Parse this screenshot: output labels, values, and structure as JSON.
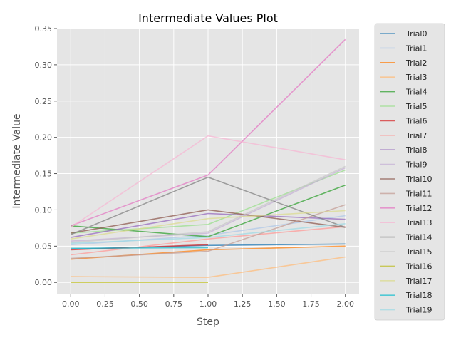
{
  "chart_data": {
    "type": "line",
    "title": "Intermediate Values Plot",
    "xlabel": "Step",
    "ylabel": "Intermediate Value",
    "xlim": [
      -0.1,
      2.1
    ],
    "ylim": [
      -0.0155,
      0.35
    ],
    "xticks": [
      0.0,
      0.25,
      0.5,
      0.75,
      1.0,
      1.25,
      1.5,
      1.75,
      2.0
    ],
    "xtick_labels": [
      "0.00",
      "0.25",
      "0.50",
      "0.75",
      "1.00",
      "1.25",
      "1.50",
      "1.75",
      "2.00"
    ],
    "yticks": [
      0.0,
      0.05,
      0.1,
      0.15,
      0.2,
      0.25,
      0.3,
      0.35
    ],
    "ytick_labels": [
      "0.00",
      "0.05",
      "0.10",
      "0.15",
      "0.20",
      "0.25",
      "0.30",
      "0.35"
    ],
    "grid": true,
    "legend_position": "outside-right",
    "background_color": "#e5e5e5",
    "series": [
      {
        "name": "Trial0",
        "color": "#1f77b4",
        "x": [
          0,
          1,
          2
        ],
        "y": [
          0.046,
          0.051,
          0.053
        ]
      },
      {
        "name": "Trial1",
        "color": "#aec7e8",
        "x": [
          0,
          1,
          2
        ],
        "y": [
          0.052,
          0.065,
          0.092
        ]
      },
      {
        "name": "Trial2",
        "color": "#ff7f0e",
        "x": [
          0,
          1,
          2
        ],
        "y": [
          0.032,
          0.045,
          0.05
        ]
      },
      {
        "name": "Trial3",
        "color": "#ffbb78",
        "x": [
          0,
          1,
          2
        ],
        "y": [
          0.008,
          0.007,
          0.035
        ]
      },
      {
        "name": "Trial4",
        "color": "#2ca02c",
        "x": [
          0,
          1,
          2
        ],
        "y": [
          0.078,
          0.063,
          0.134
        ]
      },
      {
        "name": "Trial5",
        "color": "#98df8a",
        "x": [
          0,
          1,
          2
        ],
        "y": [
          0.068,
          0.08,
          0.155
        ]
      },
      {
        "name": "Trial6",
        "color": "#d62728",
        "x": [
          0,
          1
        ],
        "y": [
          0.045,
          0.052
        ]
      },
      {
        "name": "Trial7",
        "color": "#ff9896",
        "x": [
          0,
          1,
          2
        ],
        "y": [
          0.038,
          0.06,
          0.077
        ]
      },
      {
        "name": "Trial8",
        "color": "#9467bd",
        "x": [
          0,
          1,
          2
        ],
        "y": [
          0.062,
          0.095,
          0.087
        ]
      },
      {
        "name": "Trial9",
        "color": "#c5b0d5",
        "x": [
          0,
          1,
          2
        ],
        "y": [
          0.057,
          0.068,
          0.158
        ]
      },
      {
        "name": "Trial10",
        "color": "#8c564b",
        "x": [
          0,
          1,
          2
        ],
        "y": [
          0.068,
          0.1,
          0.076
        ]
      },
      {
        "name": "Trial11",
        "color": "#c49c94",
        "x": [
          0,
          1,
          2
        ],
        "y": [
          0.033,
          0.043,
          0.107
        ]
      },
      {
        "name": "Trial12",
        "color": "#e377c2",
        "x": [
          0,
          1,
          2
        ],
        "y": [
          0.078,
          0.148,
          0.335
        ]
      },
      {
        "name": "Trial13",
        "color": "#f7b6d2",
        "x": [
          0,
          1,
          2
        ],
        "y": [
          0.076,
          0.202,
          0.169
        ]
      },
      {
        "name": "Trial14",
        "color": "#7f7f7f",
        "x": [
          0,
          1,
          2
        ],
        "y": [
          0.066,
          0.145,
          0.076
        ]
      },
      {
        "name": "Trial15",
        "color": "#c7c7c7",
        "x": [
          0,
          1,
          2
        ],
        "y": [
          0.055,
          0.07,
          0.16
        ]
      },
      {
        "name": "Trial16",
        "color": "#bcbd22",
        "x": [
          0,
          1
        ],
        "y": [
          0.0,
          0.0
        ]
      },
      {
        "name": "Trial17",
        "color": "#dbdb8d",
        "x": [
          0,
          1,
          2
        ],
        "y": [
          0.06,
          0.088,
          0.099
        ]
      },
      {
        "name": "Trial18",
        "color": "#17becf",
        "x": [
          0,
          1
        ],
        "y": [
          0.047,
          0.048
        ]
      },
      {
        "name": "Trial19",
        "color": "#9edae5",
        "x": [
          0,
          1,
          2
        ],
        "y": [
          0.054,
          0.062,
          0.081
        ]
      }
    ]
  }
}
